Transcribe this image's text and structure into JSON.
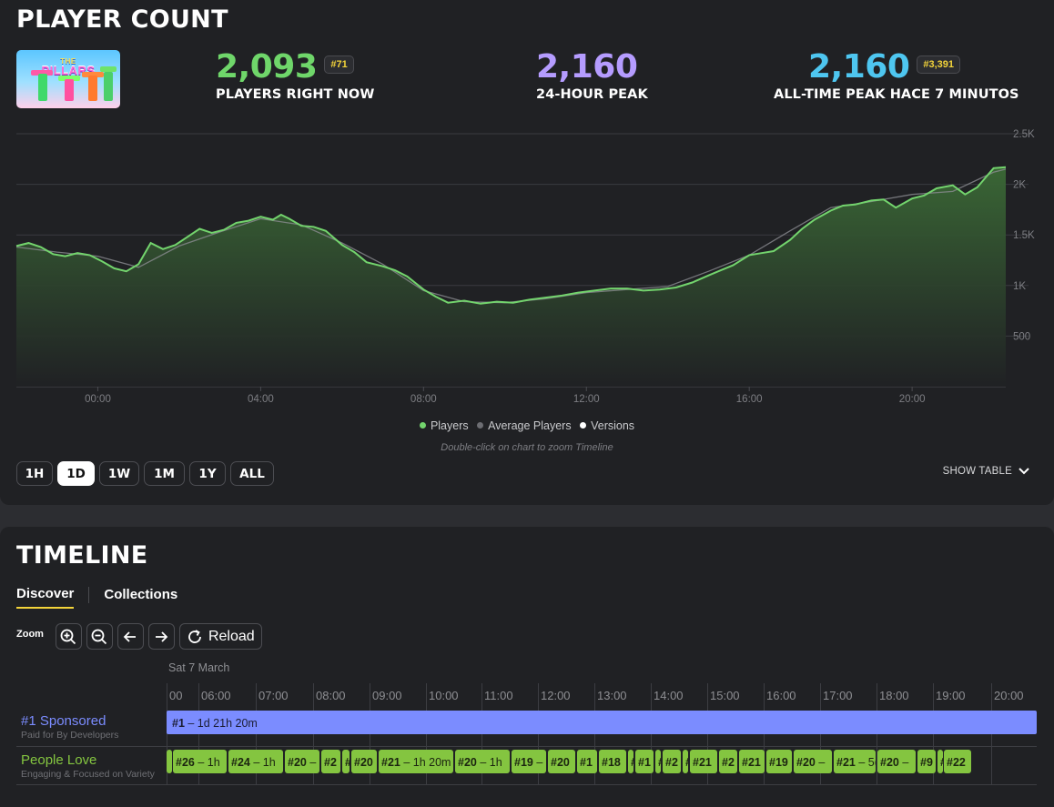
{
  "player_count": {
    "title": "PLAYER COUNT",
    "game_name": "THE PILLARS",
    "now": {
      "value": "2,093",
      "rank": "#71",
      "label": "PLAYERS RIGHT NOW",
      "color": "#6fd66a"
    },
    "peak24": {
      "value": "2,160",
      "label": "24-HOUR PEAK",
      "color": "#b59cff"
    },
    "alltime": {
      "value": "2,160",
      "rank": "#3,391",
      "label": "ALL-TIME PEAK HACE 7 MINUTOS",
      "color": "#4ec6f0"
    },
    "legend": {
      "players": "Players",
      "average": "Average Players",
      "versions": "Versions"
    },
    "hint": "Double-click on chart to zoom Timeline",
    "ranges": [
      "1H",
      "1D",
      "1W",
      "1M",
      "1Y",
      "ALL"
    ],
    "active_range": "1D",
    "show_table": "SHOW TABLE"
  },
  "chart_data": {
    "type": "area",
    "x_start_hour": -2.0,
    "x_end_hour": 22.3,
    "x_tick_labels": [
      "00:00",
      "04:00",
      "08:00",
      "12:00",
      "16:00",
      "20:00"
    ],
    "x_ticks": [
      0,
      4,
      8,
      12,
      16,
      20
    ],
    "y_tick_labels": [
      "500",
      "1K",
      "1.5K",
      "2K",
      "2.5K"
    ],
    "y_ticks": [
      500,
      1000,
      1500,
      2000,
      2500
    ],
    "ylim": [
      0,
      2500
    ],
    "grid": true,
    "legend_position": "bottom",
    "series": [
      {
        "name": "Players",
        "color": "#73d46d",
        "x": [
          -2.0,
          -1.7,
          -1.4,
          -1.1,
          -0.8,
          -0.5,
          -0.2,
          0.1,
          0.4,
          0.7,
          1.0,
          1.3,
          1.6,
          1.9,
          2.2,
          2.5,
          2.8,
          3.1,
          3.4,
          3.7,
          4.0,
          4.3,
          4.5,
          4.7,
          5.0,
          5.3,
          5.6,
          6.0,
          6.3,
          6.6,
          7.0,
          7.3,
          7.6,
          8.0,
          8.3,
          8.6,
          9.0,
          9.4,
          9.8,
          10.2,
          10.6,
          11.0,
          11.4,
          11.8,
          12.2,
          12.6,
          13.0,
          13.4,
          13.8,
          14.2,
          14.6,
          15.0,
          15.3,
          15.6,
          16.0,
          16.3,
          16.6,
          17.0,
          17.3,
          17.6,
          18.0,
          18.3,
          18.6,
          19.0,
          19.3,
          19.6,
          20.0,
          20.3,
          20.6,
          21.0,
          21.3,
          21.6,
          22.0,
          22.3
        ],
        "values": [
          1390,
          1420,
          1380,
          1310,
          1290,
          1320,
          1300,
          1240,
          1170,
          1140,
          1210,
          1420,
          1360,
          1400,
          1480,
          1560,
          1520,
          1550,
          1620,
          1640,
          1680,
          1650,
          1700,
          1660,
          1590,
          1580,
          1540,
          1400,
          1330,
          1230,
          1190,
          1150,
          1090,
          960,
          890,
          830,
          850,
          820,
          840,
          830,
          860,
          880,
          900,
          930,
          950,
          970,
          970,
          950,
          960,
          980,
          1030,
          1100,
          1150,
          1200,
          1300,
          1320,
          1340,
          1450,
          1560,
          1650,
          1740,
          1790,
          1800,
          1840,
          1850,
          1770,
          1860,
          1890,
          1960,
          1990,
          1900,
          1970,
          2160,
          2170
        ]
      },
      {
        "name": "Average Players",
        "color": "#8a8b90",
        "x": [
          -2.0,
          -1.0,
          0.0,
          1.0,
          2.0,
          3.0,
          4.0,
          5.0,
          6.0,
          7.0,
          8.0,
          9.0,
          10.0,
          11.0,
          12.0,
          13.0,
          14.0,
          15.0,
          16.0,
          17.0,
          18.0,
          19.0,
          20.0,
          21.0,
          22.0,
          22.3
        ],
        "values": [
          1380,
          1330,
          1290,
          1180,
          1390,
          1530,
          1660,
          1600,
          1420,
          1210,
          950,
          840,
          830,
          870,
          930,
          960,
          990,
          1140,
          1300,
          1540,
          1770,
          1830,
          1900,
          1930,
          2120,
          2150
        ]
      }
    ]
  },
  "timeline": {
    "title": "TIMELINE",
    "tabs": [
      "Discover",
      "Collections"
    ],
    "active_tab": "Discover",
    "zoom_label": "Zoom",
    "reload_label": "Reload",
    "date_label": "Sat 7 March",
    "hours": [
      "00",
      "06:00",
      "07:00",
      "08:00",
      "09:00",
      "10:00",
      "11:00",
      "12:00",
      "13:00",
      "14:00",
      "15:00",
      "16:00",
      "17:00",
      "18:00",
      "19:00",
      "20:00"
    ],
    "rows": [
      {
        "rank": "#1",
        "title": "Sponsored",
        "subtitle": "Paid for By Developers",
        "title_color": "#7b8cff"
      },
      {
        "title": "People Love",
        "subtitle": "Engaging & Focused on Variety",
        "title_color": "#84c540"
      }
    ],
    "sponsored_bar": {
      "rank": "#1",
      "text": " – 1d 21h 20m"
    },
    "segments": [
      {
        "rank": "",
        "text": ""
      },
      {
        "rank": "#26",
        "text": " – 1h"
      },
      {
        "rank": "#24",
        "text": " – 1h"
      },
      {
        "rank": "#20",
        "text": " –"
      },
      {
        "rank": "#2",
        "text": ""
      },
      {
        "rank": "#",
        "text": ""
      },
      {
        "rank": "#20",
        "text": ""
      },
      {
        "rank": "#21",
        "text": " – 1h 20m"
      },
      {
        "rank": "#20",
        "text": " – 1h"
      },
      {
        "rank": "#19",
        "text": " –"
      },
      {
        "rank": "#20",
        "text": ""
      },
      {
        "rank": "#1",
        "text": ""
      },
      {
        "rank": "#18",
        "text": ""
      },
      {
        "rank": "#",
        "text": ""
      },
      {
        "rank": "#1",
        "text": ""
      },
      {
        "rank": "#",
        "text": ""
      },
      {
        "rank": "#2",
        "text": ""
      },
      {
        "rank": "#",
        "text": ""
      },
      {
        "rank": "#21",
        "text": ""
      },
      {
        "rank": "#2",
        "text": ""
      },
      {
        "rank": "#21",
        "text": ""
      },
      {
        "rank": "#19",
        "text": ""
      },
      {
        "rank": "#20",
        "text": " –"
      },
      {
        "rank": "#21",
        "text": " – 5("
      },
      {
        "rank": "#20",
        "text": " –"
      },
      {
        "rank": "#9",
        "text": ""
      },
      {
        "rank": "#",
        "text": ""
      },
      {
        "rank": "#22",
        "text": ""
      }
    ]
  }
}
